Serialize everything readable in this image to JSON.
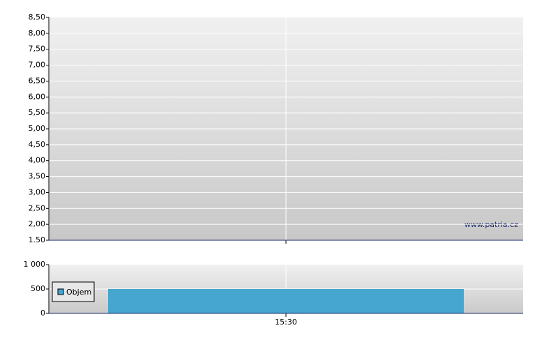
{
  "chart_data": [
    {
      "type": "line",
      "annotation": "www.patria.cz",
      "ylim": [
        1.5,
        8.5
      ],
      "yticks": [
        {
          "value": 1.5,
          "label": "1.50"
        },
        {
          "value": 2,
          "label": "2,00"
        },
        {
          "value": 2.5,
          "label": "2,50"
        },
        {
          "value": 3,
          "label": "3,00"
        },
        {
          "value": 3.5,
          "label": "3,50"
        },
        {
          "value": 4,
          "label": "4,00"
        },
        {
          "value": 4.5,
          "label": "4,50"
        },
        {
          "value": 5,
          "label": "5,00"
        },
        {
          "value": 5.5,
          "label": "5,50"
        },
        {
          "value": 6,
          "label": "6,00"
        },
        {
          "value": 6.5,
          "label": "6,50"
        },
        {
          "value": 7,
          "label": "7,00"
        },
        {
          "value": 7.5,
          "label": "7,50"
        },
        {
          "value": 8,
          "label": "8,00"
        },
        {
          "value": 8.5,
          "label": "8,50"
        }
      ],
      "grid": true
    },
    {
      "type": "bar",
      "categories": [
        "15:30"
      ],
      "series": [
        {
          "name": "Objem",
          "color": "#46a6cf",
          "values": [
            500
          ]
        }
      ],
      "ylim": [
        0,
        1000
      ],
      "yticks": [
        0,
        500,
        {
          "value": 1000,
          "label": "1 000"
        }
      ],
      "grid": true,
      "legend": "left"
    }
  ]
}
